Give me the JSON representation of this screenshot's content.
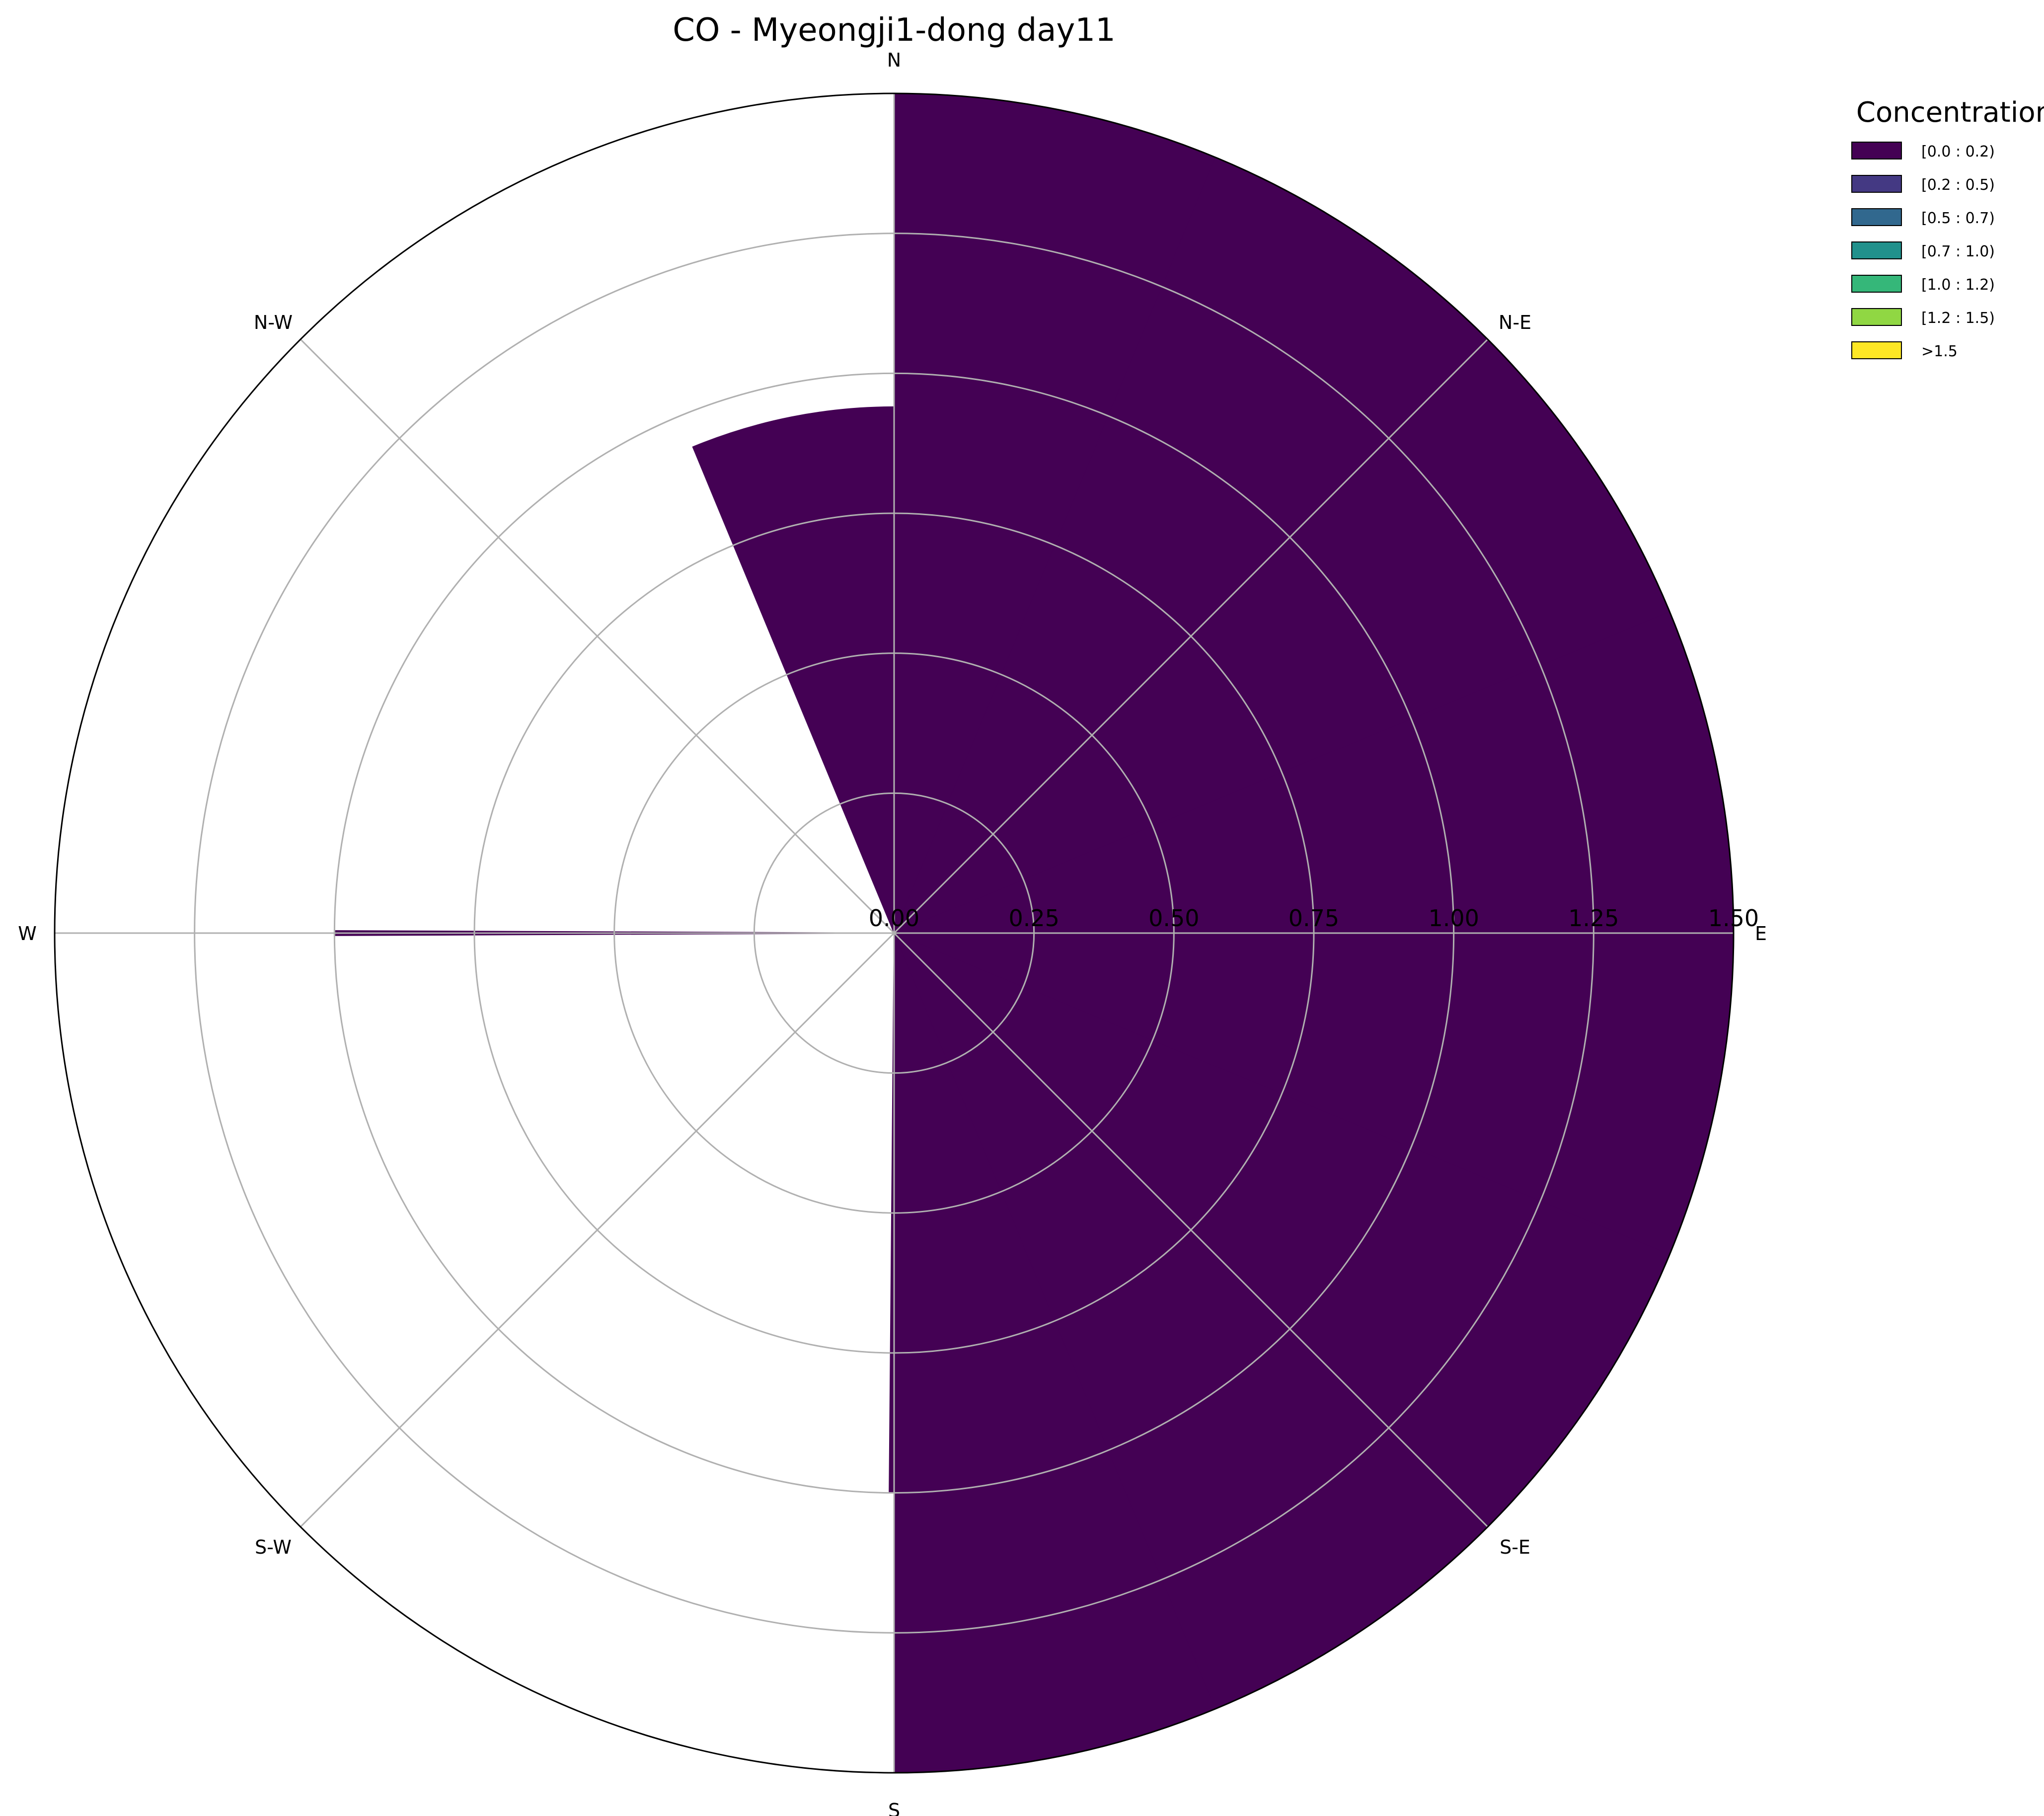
{
  "chart_data": {
    "type": "windrose",
    "title": "CO - Myeongji1-dong day11",
    "directions": [
      "N",
      "N-E",
      "E",
      "S-E",
      "S",
      "S-W",
      "W",
      "N-W"
    ],
    "r_ticks": [
      "0.00",
      "0.25",
      "0.50",
      "0.75",
      "1.00",
      "1.25",
      "1.50"
    ],
    "r_max": 1.5,
    "grid": true,
    "legend": {
      "title": "Concentration",
      "placement": "top-right",
      "entries": [
        "[0.0 : 0.2)",
        "[0.2 : 0.5)",
        "[0.5 : 0.7)",
        "[0.7 : 1.0)",
        "[1.0 : 1.2)",
        "[1.2 : 1.5)",
        ">1.5"
      ],
      "colors": [
        "#440154",
        "#443983",
        "#31688e",
        "#21918c",
        "#35b779",
        "#90d743",
        "#fde725"
      ]
    },
    "sectors": [
      {
        "direction": "N",
        "from_deg": 0,
        "to_deg": 22.5,
        "value": 1.5
      },
      {
        "direction": "N",
        "from_deg": -22.5,
        "to_deg": 0,
        "value": 0.94
      },
      {
        "direction": "N-E",
        "from_deg": 22.5,
        "to_deg": 45,
        "value": 1.5
      },
      {
        "direction": "N-E",
        "from_deg": 45,
        "to_deg": 67.5,
        "value": 1.5
      },
      {
        "direction": "E",
        "from_deg": 67.5,
        "to_deg": 112.5,
        "value": 1.5
      },
      {
        "direction": "S-E",
        "from_deg": 112.5,
        "to_deg": 157.5,
        "value": 1.5
      },
      {
        "direction": "S",
        "from_deg": 157.5,
        "to_deg": 180,
        "value": 1.5
      },
      {
        "direction": "S",
        "from_deg": 180,
        "to_deg": 180.5,
        "value": 1.0
      },
      {
        "direction": "W",
        "from_deg": 269.75,
        "to_deg": 270.25,
        "value": 1.0
      }
    ]
  }
}
